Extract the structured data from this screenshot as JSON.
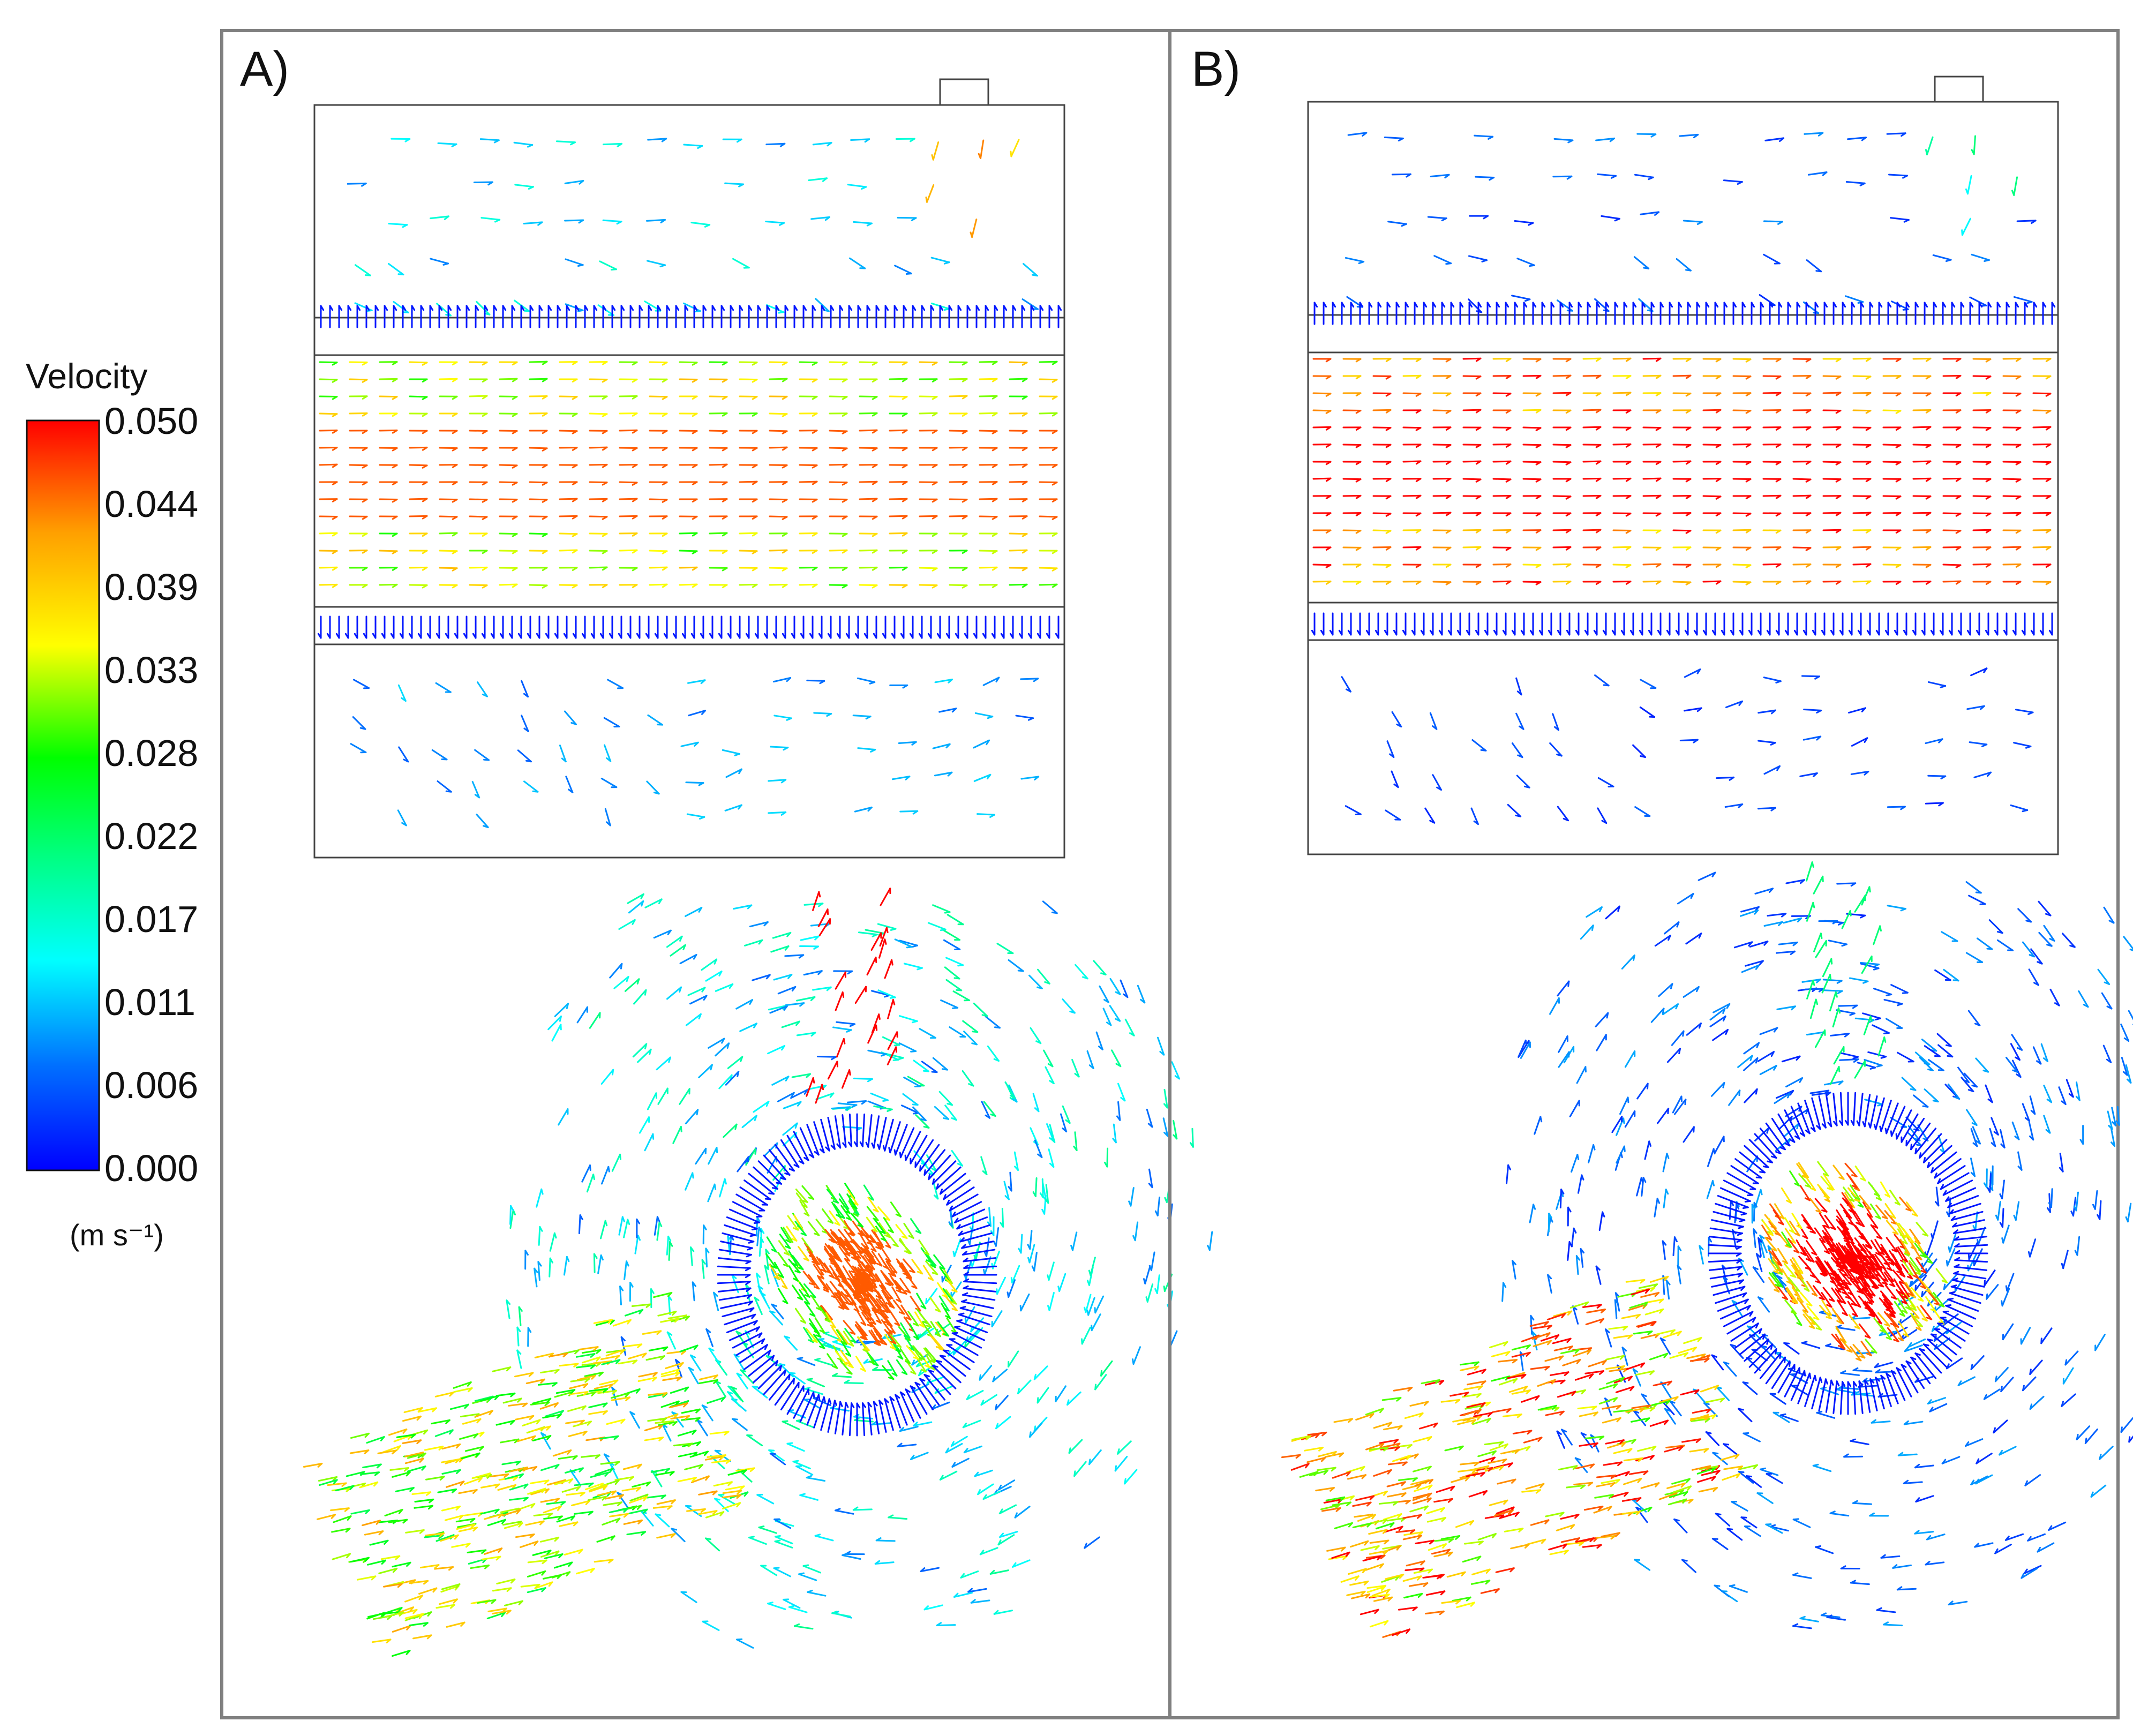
{
  "legend": {
    "title": "Velocity",
    "ticks": [
      "0.050",
      "0.044",
      "0.039",
      "0.033",
      "0.028",
      "0.022",
      "0.017",
      "0.011",
      "0.006",
      "0.000"
    ],
    "unit": "(m s⁻¹)",
    "min": 0.0,
    "max": 0.05,
    "colormap": [
      "#0000ff",
      "#00a0ff",
      "#00ffff",
      "#00ff80",
      "#00ff00",
      "#ffff00",
      "#ffa000",
      "#ff0000"
    ]
  },
  "panels": [
    {
      "label": "A)",
      "channel_speed": 0.039,
      "channel_core_speed": 0.046,
      "recirculation_speed": 0.008,
      "jet_speed": 0.05
    },
    {
      "label": "B)",
      "channel_speed": 0.049,
      "channel_core_speed": 0.05,
      "recirculation_speed": 0.003,
      "jet_speed": 0.022
    }
  ]
}
